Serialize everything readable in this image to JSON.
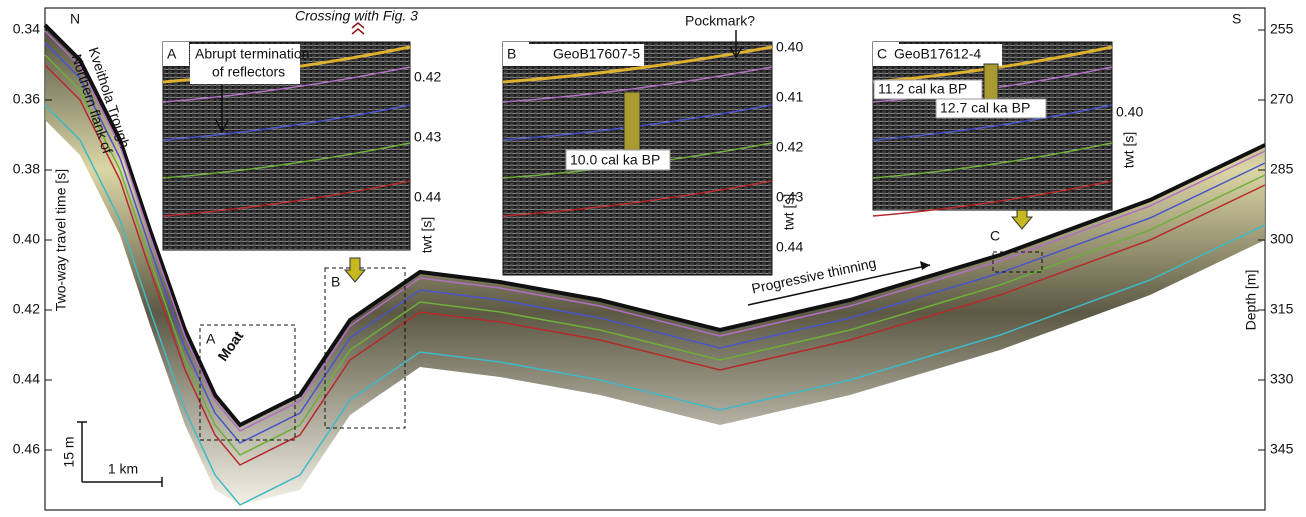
{
  "left_axis": {
    "label": "Two-way travel time [s]",
    "ticks": [
      "0.34",
      "0.36",
      "0.38",
      "0.40",
      "0.42",
      "0.44",
      "0.46"
    ]
  },
  "right_axis": {
    "label": "Depth [m]",
    "ticks": [
      "255",
      "270",
      "285",
      "300",
      "315",
      "330",
      "345"
    ]
  },
  "compass": {
    "north": "N",
    "south": "S"
  },
  "annotations": {
    "flank": [
      "Northern flank of",
      "Kveithola Trough"
    ],
    "moat": "Moat",
    "thinning": "Progressive thinning",
    "crossing": "Crossing with Fig. 3",
    "boxes": [
      "A",
      "B",
      "C"
    ]
  },
  "scale": {
    "vertical": "15 m",
    "horizontal": "1 km"
  },
  "insets": [
    {
      "label": "A",
      "note": [
        "Abrupt termination",
        "of reflectors"
      ],
      "ticks": [
        "0.42",
        "0.43",
        "0.44"
      ],
      "axis": "twt [s]"
    },
    {
      "label": "B",
      "core": "GeoB17607-5",
      "note": [
        "Pockmark?"
      ],
      "ages": [
        "10.0 cal ka BP"
      ],
      "ticks": [
        "0.40",
        "0.41",
        "0.42",
        "0.43",
        "0.44"
      ],
      "axis": "twt [s]"
    },
    {
      "label": "C",
      "core": "GeoB17612-4",
      "ages": [
        "11.2 cal ka BP",
        "12.7 cal ka BP"
      ],
      "ticks": [
        "0.40"
      ],
      "axis": "twt [s]"
    }
  ]
}
